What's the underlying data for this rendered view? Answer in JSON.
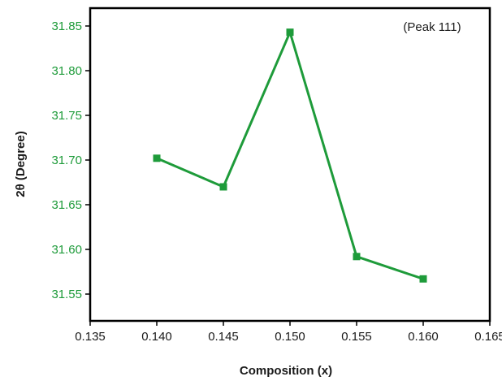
{
  "chart_data": {
    "type": "line",
    "title": "",
    "xlabel": "Composition (x)",
    "ylabel": "2θ (Degree)",
    "annotation": "(Peak 111)",
    "xlim": [
      0.135,
      0.165
    ],
    "ylim": [
      31.52,
      31.87
    ],
    "x_ticks": [
      "0.135",
      "0.140",
      "0.145",
      "0.150",
      "0.155",
      "0.160",
      "0.165"
    ],
    "y_ticks": [
      "31.55",
      "31.60",
      "31.65",
      "31.70",
      "31.75",
      "31.80",
      "31.85"
    ],
    "grid": false,
    "legend": "none",
    "series": [
      {
        "x": [
          0.14,
          0.145,
          0.15,
          0.155,
          0.16
        ],
        "y": [
          31.702,
          31.67,
          31.843,
          31.592,
          31.567
        ],
        "marker": "square",
        "color": "#1e9b3a"
      }
    ],
    "colors": {
      "series": "#1e9b3a",
      "y_tick_labels": "#1e9b3a",
      "axes": "#000000"
    }
  }
}
